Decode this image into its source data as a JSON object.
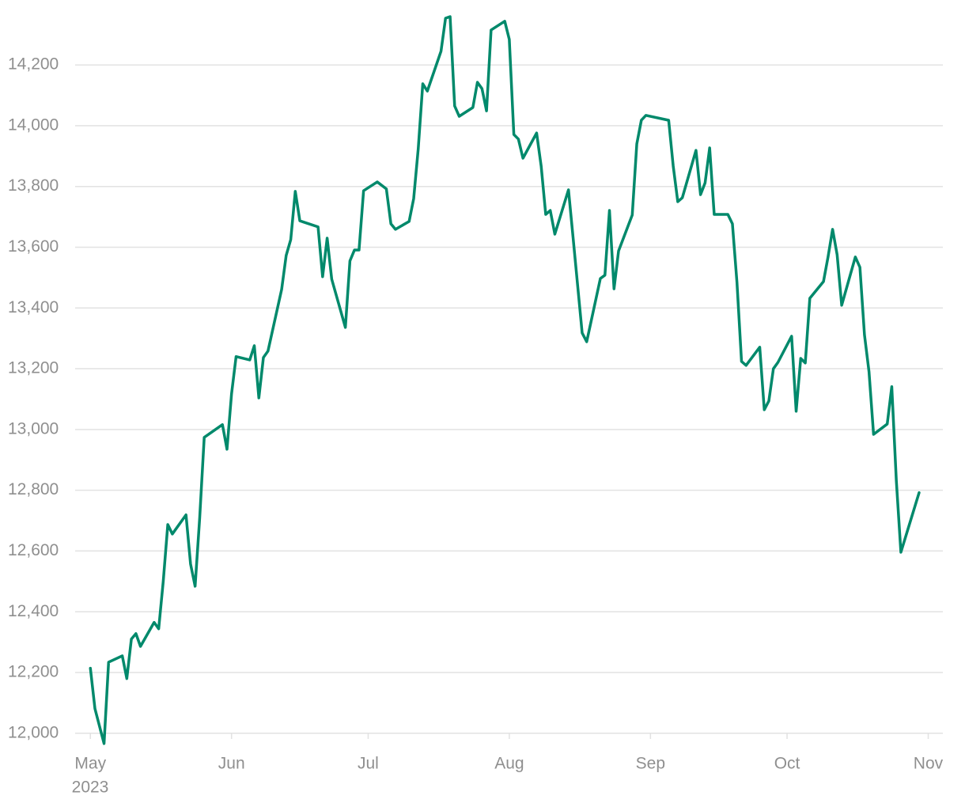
{
  "chart_data": {
    "type": "line",
    "color": "#00896b",
    "grid": true,
    "x": [
      0,
      1,
      3,
      4,
      7,
      8,
      9,
      10,
      11,
      14,
      15,
      16,
      17,
      18,
      21,
      22,
      23,
      24,
      25,
      29,
      30,
      31,
      32,
      35,
      36,
      37,
      38,
      39,
      42,
      43,
      44,
      45,
      46,
      50,
      51,
      52,
      53,
      56,
      57,
      58,
      59,
      60,
      63,
      65,
      66,
      67,
      70,
      71,
      72,
      73,
      74,
      77,
      78,
      79,
      80,
      81,
      84,
      85,
      86,
      87,
      88,
      91,
      92,
      93,
      94,
      95,
      98,
      99,
      100,
      101,
      102,
      105,
      106,
      108,
      109,
      112,
      113,
      114,
      115,
      116,
      119,
      120,
      121,
      122,
      127,
      128,
      129,
      130,
      133,
      134,
      135,
      136,
      137,
      140,
      141,
      142,
      143,
      144,
      147,
      148,
      149,
      150,
      151,
      154,
      155,
      156,
      157,
      158,
      161,
      162,
      163,
      164,
      165,
      168,
      169,
      170,
      171,
      172,
      175,
      176,
      177,
      178,
      182
    ],
    "values": [
      12214,
      12081,
      11966,
      12234,
      12255,
      12180,
      12310,
      12328,
      12286,
      12365,
      12344,
      12500,
      12687,
      12656,
      12719,
      12557,
      12484,
      12708,
      12974,
      13016,
      12935,
      13117,
      13240,
      13229,
      13276,
      13104,
      13237,
      13258,
      13461,
      13573,
      13625,
      13784,
      13687,
      13667,
      13503,
      13630,
      13495,
      13336,
      13555,
      13591,
      13591,
      13786,
      13815,
      13792,
      13677,
      13659,
      13685,
      13760,
      13924,
      14138,
      14114,
      14245,
      14354,
      14359,
      14065,
      14031,
      14060,
      14143,
      14122,
      14049,
      14315,
      14344,
      14284,
      13971,
      13956,
      13893,
      13976,
      13867,
      13708,
      13721,
      13643,
      13789,
      13633,
      13318,
      13289,
      13497,
      13508,
      13721,
      13463,
      13588,
      13706,
      13940,
      14018,
      14034,
      14018,
      13867,
      13750,
      13763,
      13919,
      13773,
      13812,
      13927,
      13708,
      13708,
      13677,
      13484,
      13224,
      13211,
      13271,
      13065,
      13094,
      13200,
      13221,
      13307,
      13060,
      13234,
      13219,
      13432,
      13487,
      13568,
      13659,
      13575,
      13409,
      13568,
      13534,
      13312,
      13190,
      12984,
      13018,
      13141,
      12831,
      12596,
      12792
    ],
    "xlim": [
      -3,
      186
    ],
    "xticks": [
      {
        "value": 0,
        "label": "May"
      },
      {
        "value": 31,
        "label": "Jun"
      },
      {
        "value": 61,
        "label": "Jul"
      },
      {
        "value": 92,
        "label": "Aug"
      },
      {
        "value": 123,
        "label": "Sep"
      },
      {
        "value": 153,
        "label": "Oct"
      },
      {
        "value": 184,
        "label": "Nov"
      }
    ],
    "year_label": "2023",
    "ylim": [
      11950,
      14380
    ],
    "yticks": [
      {
        "value": 12000,
        "label": "12,000"
      },
      {
        "value": 12200,
        "label": "12,200"
      },
      {
        "value": 12400,
        "label": "12,400"
      },
      {
        "value": 12600,
        "label": "12,600"
      },
      {
        "value": 12800,
        "label": "12,800"
      },
      {
        "value": 13000,
        "label": "13,000"
      },
      {
        "value": 13200,
        "label": "13,200"
      },
      {
        "value": 13400,
        "label": "13,400"
      },
      {
        "value": 13600,
        "label": "13,600"
      },
      {
        "value": 13800,
        "label": "13,800"
      },
      {
        "value": 14000,
        "label": "14,000"
      },
      {
        "value": 14200,
        "label": "14,200"
      }
    ]
  }
}
